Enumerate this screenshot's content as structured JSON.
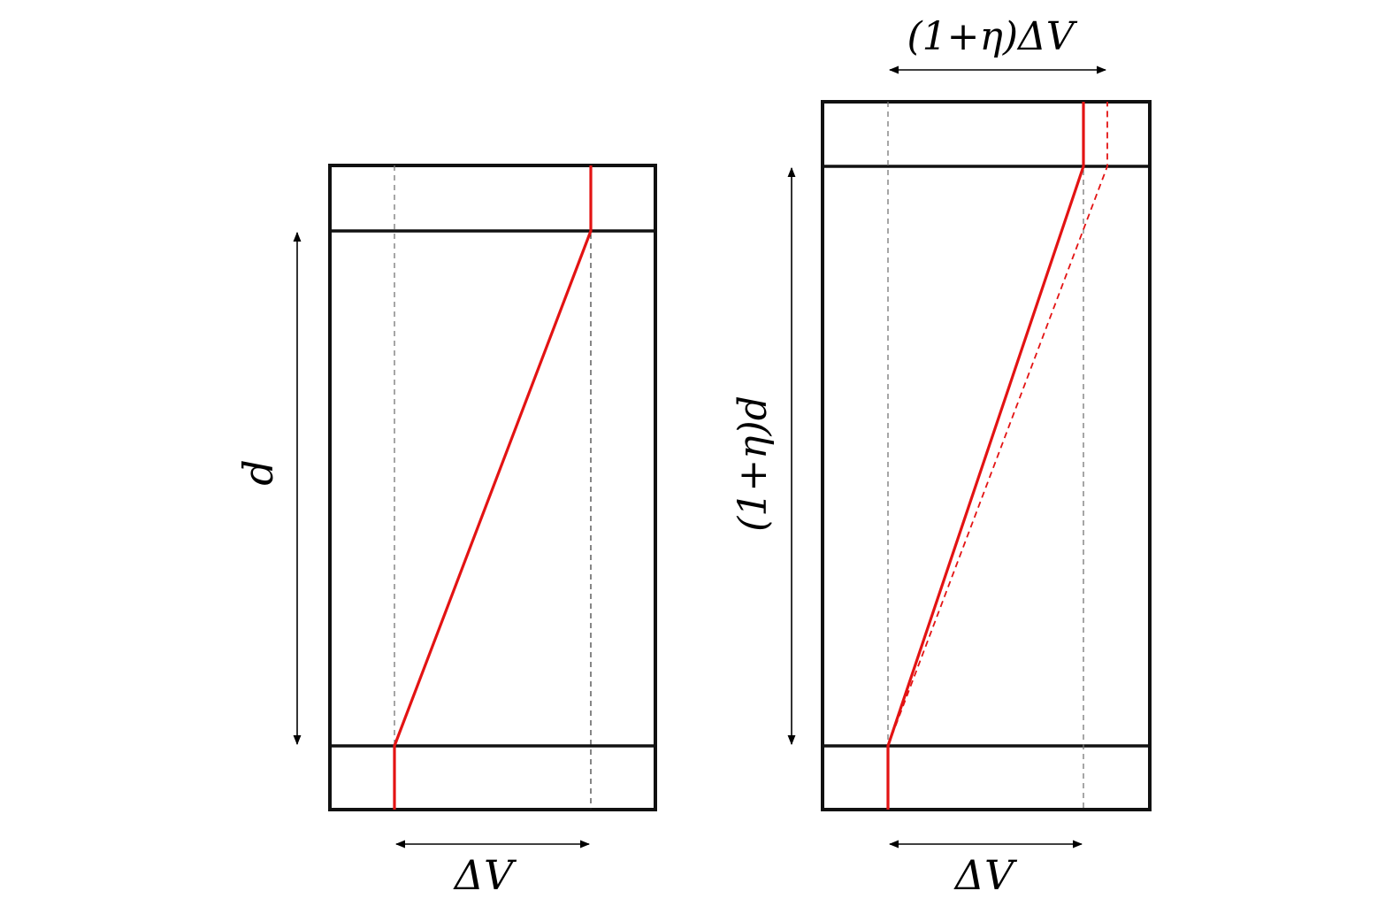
{
  "labels": {
    "left_width": "ΔV",
    "left_height": "d",
    "right_width": "ΔV",
    "right_height": "(1+η)d",
    "right_top_width": "(1+η)ΔV"
  }
}
